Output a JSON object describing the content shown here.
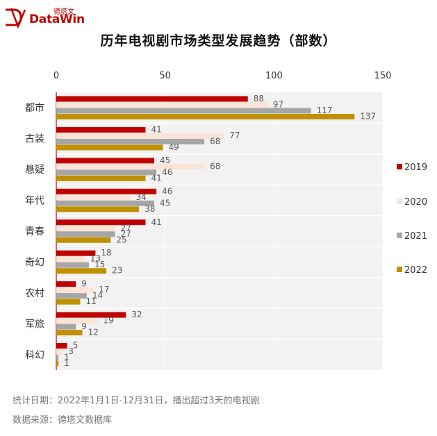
{
  "brand": {
    "logo_cn": "德塔文",
    "logo_en": "DataWin",
    "red": "#c00000"
  },
  "notes": {
    "stat_period": "统计日期：2022年1月1日-12月31日，播出超过3天的电视剧",
    "source": "数据来源：德塔文数据库"
  },
  "chart_data": {
    "type": "bar",
    "orientation": "horizontal",
    "title": "历年电视剧市场类型发展趋势（部数）",
    "categories": [
      "都市",
      "古装",
      "悬疑",
      "年代",
      "青春",
      "奇幻",
      "农村",
      "军旅",
      "科幻"
    ],
    "series": [
      {
        "name": "2019",
        "color": "#c00000",
        "values": [
          88,
          41,
          45,
          46,
          41,
          18,
          9,
          32,
          5
        ]
      },
      {
        "name": "2020",
        "color": "#fbe3d6",
        "values": [
          97,
          77,
          68,
          34,
          27,
          13,
          17,
          19,
          3
        ]
      },
      {
        "name": "2021",
        "color": "#a6a6a6",
        "values": [
          117,
          68,
          46,
          45,
          27,
          15,
          14,
          9,
          1
        ]
      },
      {
        "name": "2022",
        "color": "#bf9000",
        "values": [
          137,
          49,
          41,
          38,
          25,
          23,
          11,
          12,
          1
        ]
      }
    ],
    "xlim": [
      0,
      150
    ],
    "xticks": [
      "0",
      "50",
      "100",
      "150"
    ],
    "xaxis_position": "top",
    "legend_position": "right",
    "grid": true
  }
}
